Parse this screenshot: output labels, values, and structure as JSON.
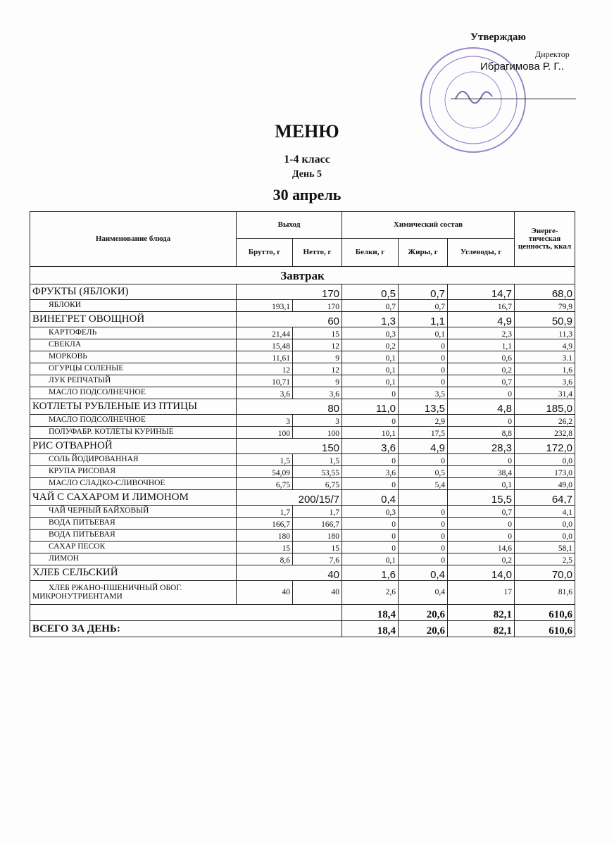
{
  "header": {
    "approve": "Утверждаю",
    "position": "Директор",
    "director_name": "Ибрагимова Р. Г..",
    "stamp_color": "#7a5fb8"
  },
  "title": "МЕНЮ",
  "grade": "1-4 класс",
  "day": "День 5",
  "date": "30 апрель",
  "columns": {
    "name": "Наименование блюда",
    "output": "Выход",
    "chem": "Химический состав",
    "energy": "Энерге-тическая ценность, ккал",
    "brutto": "Брутто, г",
    "netto": "Нетто, г",
    "protein": "Белки, г",
    "fat": "Жиры, г",
    "carbs": "Углеводы, г"
  },
  "section": "Завтрак",
  "rows": [
    {
      "type": "main",
      "name": "ФРУКТЫ (ЯБЛОКИ)",
      "out": "170",
      "p": "0,5",
      "f": "0,7",
      "c": "14,7",
      "e": "68,0"
    },
    {
      "type": "sub",
      "name": "ЯБЛОКИ",
      "b": "193,1",
      "n": "170",
      "p": "0,7",
      "f": "0,7",
      "c": "16,7",
      "e": "79,9"
    },
    {
      "type": "main",
      "name": "ВИНЕГРЕТ ОВОЩНОЙ",
      "out": "60",
      "p": "1,3",
      "f": "1,1",
      "c": "4,9",
      "e": "50,9"
    },
    {
      "type": "sub",
      "name": "КАРТОФЕЛЬ",
      "b": "21,44",
      "n": "15",
      "p": "0,3",
      "f": "0,1",
      "c": "2,3",
      "e": "11,3"
    },
    {
      "type": "sub",
      "name": "СВЕКЛА",
      "b": "15,48",
      "n": "12",
      "p": "0,2",
      "f": "0",
      "c": "1,1",
      "e": "4,9"
    },
    {
      "type": "sub",
      "name": "МОРКОВЬ",
      "b": "11,61",
      "n": "9",
      "p": "0,1",
      "f": "0",
      "c": "0,6",
      "e": "3.1"
    },
    {
      "type": "sub",
      "name": "ОГУРЦЫ СОЛЕНЫЕ",
      "b": "12",
      "n": "12",
      "p": "0,1",
      "f": "0",
      "c": "0,2",
      "e": "1,6"
    },
    {
      "type": "sub",
      "name": "ЛУК РЕПЧАТЫЙ",
      "b": "10,71",
      "n": "9",
      "p": "0,1",
      "f": "0",
      "c": "0,7",
      "e": "3,6"
    },
    {
      "type": "sub",
      "name": "МАСЛО ПОДСОЛНЕЧНОЕ",
      "b": "3,6",
      "n": "3,6",
      "p": "0",
      "f": "3,5",
      "c": "0",
      "e": "31,4"
    },
    {
      "type": "main",
      "name": "КОТЛЕТЫ РУБЛЕНЫЕ   ИЗ ПТИЦЫ",
      "out": "80",
      "p": "11,0",
      "f": "13,5",
      "c": "4,8",
      "e": "185,0"
    },
    {
      "type": "sub",
      "name": "МАСЛО ПОДСОЛНЕЧНОЕ",
      "b": "3",
      "n": "3",
      "p": "0",
      "f": "2,9",
      "c": "0",
      "e": "26,2"
    },
    {
      "type": "sub",
      "name": "ПОЛУФАБР. КОТЛЕТЫ КУРИНЫЕ",
      "b": "100",
      "n": "100",
      "p": "10,1",
      "f": "17,5",
      "c": "8,8",
      "e": "232,8"
    },
    {
      "type": "main",
      "name": "РИС ОТВАРНОЙ",
      "out": "150",
      "p": "3,6",
      "f": "4,9",
      "c": "28,3",
      "e": "172,0"
    },
    {
      "type": "sub",
      "name": "СОЛЬ   ЙОДИРОВАННАЯ",
      "b": "1,5",
      "n": "1,5",
      "p": "0",
      "f": "0",
      "c": "0",
      "e": "0,0"
    },
    {
      "type": "sub",
      "name": "КРУПА РИСОВАЯ",
      "b": "54,09",
      "n": "53,55",
      "p": "3,6",
      "f": "0,5",
      "c": "38,4",
      "e": "173,0"
    },
    {
      "type": "sub",
      "name": "МАСЛО СЛАДКО-СЛИВОЧНОЕ",
      "b": "6,75",
      "n": "6,75",
      "p": "0",
      "f": "5,4",
      "c": "0,1",
      "e": "49,0"
    },
    {
      "type": "main",
      "name": "ЧАЙ С САХАРОМ И ЛИМОНОМ",
      "out": "200/15/7",
      "p": "0,4",
      "f": "",
      "c": "15,5",
      "e": "64,7"
    },
    {
      "type": "sub",
      "name": "ЧАЙ ЧЕРНЫЙ БАЙХОВЫЙ",
      "b": "1,7",
      "n": "1,7",
      "p": "0,3",
      "f": "0",
      "c": "0,7",
      "e": "4,1"
    },
    {
      "type": "sub",
      "name": "ВОДА ПИТЬЕВАЯ",
      "b": "166,7",
      "n": "166,7",
      "p": "0",
      "f": "0",
      "c": "0",
      "e": "0,0"
    },
    {
      "type": "sub",
      "name": "ВОДА ПИТЬЕВАЯ",
      "b": "180",
      "n": "180",
      "p": "0",
      "f": "0",
      "c": "0",
      "e": "0,0"
    },
    {
      "type": "sub",
      "name": "САХАР ПЕСОК",
      "b": "15",
      "n": "15",
      "p": "0",
      "f": "0",
      "c": "14,6",
      "e": "58,1"
    },
    {
      "type": "sub",
      "name": "ЛИМОН",
      "b": "8,6",
      "n": "7,6",
      "p": "0,1",
      "f": "0",
      "c": "0,2",
      "e": "2,5"
    },
    {
      "type": "main",
      "name": "ХЛЕБ СЕЛЬСКИЙ",
      "out": "40",
      "p": "1,6",
      "f": "0,4",
      "c": "14,0",
      "e": "70,0"
    },
    {
      "type": "sub2",
      "name": "ХЛЕБ РЖАНО-ПШЕНИЧНЫЙ ОБОГ. МИКРОНУТРИЕНТАМИ",
      "b": "40",
      "n": "40",
      "p": "2,6",
      "f": "0,4",
      "c": "17",
      "e": "81,6"
    }
  ],
  "subtotal": {
    "p": "18,4",
    "f": "20,6",
    "c": "82,1",
    "e": "610,6"
  },
  "total": {
    "label": "ВСЕГО ЗА ДЕНЬ:",
    "p": "18,4",
    "f": "20,6",
    "c": "82,1",
    "e": "610,6"
  }
}
